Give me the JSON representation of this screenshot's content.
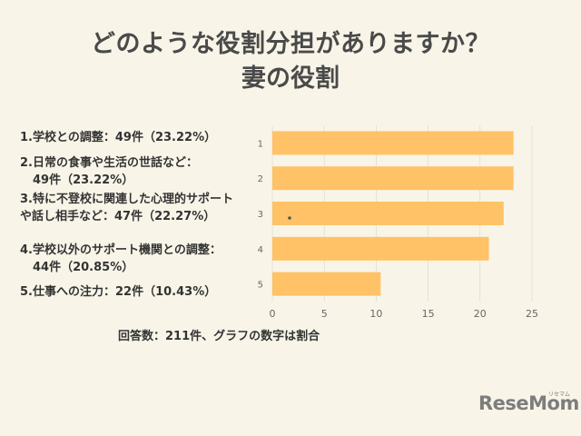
{
  "title": "どのような役割分担がありますか？",
  "subtitle": "妻の役割",
  "legend": [
    {
      "lines": [
        "1.学校との調整：49件（23.22%）"
      ]
    },
    {
      "lines": [
        "2.日常の食事や生活の世話など：",
        "49件（23.22%）"
      ]
    },
    {
      "lines": [
        "3.特に不登校に関連した心理的サポー",
        "ト",
        "や話し相手など：47件（22.27%）"
      ]
    },
    {
      "lines": [
        "4.学校以外のサポート機関との調整：",
        "44件（20.85%）"
      ]
    },
    {
      "lines": [
        "5.仕事への注力：22件（10.43%）"
      ]
    }
  ],
  "footnote": "回答数：211件、グラフの数字は割合",
  "logo": "ReseMom",
  "logo_small": "リセマム",
  "colors": {
    "bar": "#ffc266",
    "background": "#f8f5e8",
    "axis_text": "#666666",
    "grid": "#d8d5ca"
  },
  "chart_data": {
    "type": "bar",
    "orientation": "horizontal",
    "categories": [
      "1",
      "2",
      "3",
      "4",
      "5"
    ],
    "values": [
      23.22,
      23.22,
      22.27,
      20.85,
      10.43
    ],
    "xlim": [
      0,
      25
    ],
    "xticks": [
      0,
      5,
      10,
      15,
      20,
      25
    ],
    "grid": true,
    "title": "",
    "xlabel": "",
    "ylabel": ""
  }
}
